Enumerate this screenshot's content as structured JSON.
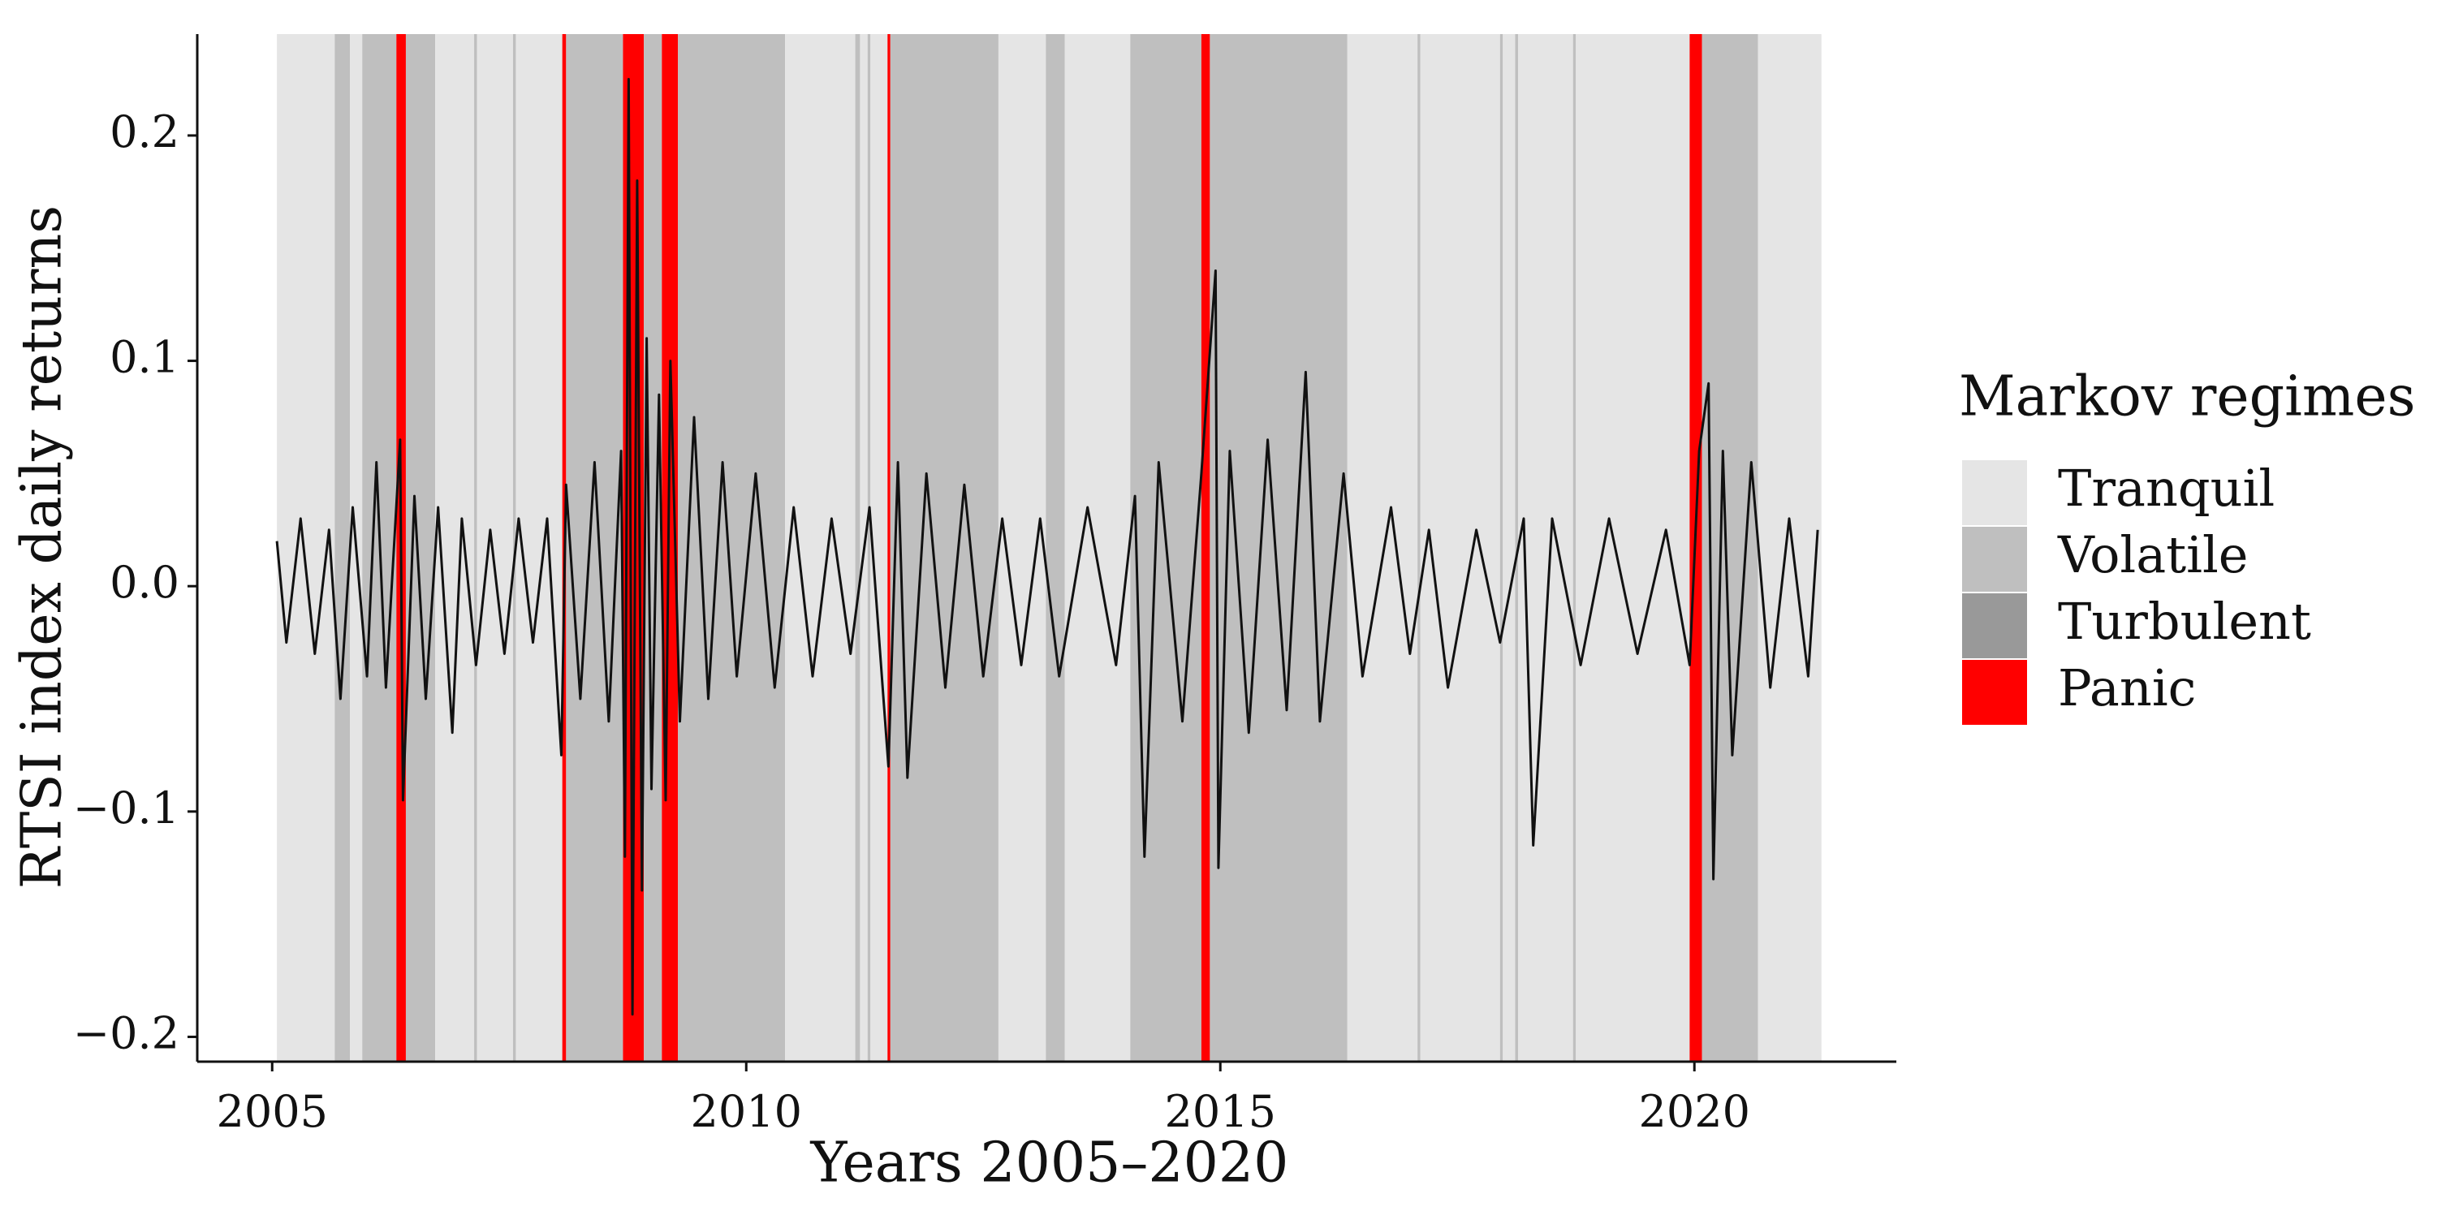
{
  "chart_data": {
    "type": "line",
    "x_label": "Years 2005–2020",
    "y_label": "RTSI index daily returns",
    "xlim": [
      2004.21,
      2022.13
    ],
    "ylim": [
      -0.211,
      0.245
    ],
    "xticks": [
      2005,
      2010,
      2015,
      2020
    ],
    "yticks": [
      {
        "value": -0.2,
        "label": "−0.2"
      },
      {
        "value": -0.1,
        "label": "−0.1"
      },
      {
        "value": 0,
        "label": "0.0"
      },
      0.1,
      0.2
    ],
    "line": {
      "color": "#111111",
      "x": [
        2005.05,
        2005.15,
        2005.3,
        2005.45,
        2005.6,
        2005.72,
        2005.85,
        2006.0,
        2006.1,
        2006.2,
        2006.35,
        2006.38,
        2006.5,
        2006.62,
        2006.75,
        2006.9,
        2007.0,
        2007.15,
        2007.3,
        2007.45,
        2007.6,
        2007.75,
        2007.9,
        2008.05,
        2008.1,
        2008.25,
        2008.4,
        2008.55,
        2008.68,
        2008.72,
        2008.76,
        2008.8,
        2008.85,
        2008.9,
        2008.95,
        2009.0,
        2009.08,
        2009.15,
        2009.2,
        2009.3,
        2009.45,
        2009.6,
        2009.75,
        2009.9,
        2010.1,
        2010.3,
        2010.5,
        2010.7,
        2010.9,
        2011.1,
        2011.3,
        2011.5,
        2011.6,
        2011.7,
        2011.9,
        2012.1,
        2012.3,
        2012.5,
        2012.7,
        2012.9,
        2013.1,
        2013.3,
        2013.6,
        2013.9,
        2014.1,
        2014.2,
        2014.35,
        2014.6,
        2014.8,
        2014.95,
        2014.98,
        2015.1,
        2015.3,
        2015.5,
        2015.7,
        2015.9,
        2016.05,
        2016.3,
        2016.5,
        2016.8,
        2017.0,
        2017.2,
        2017.4,
        2017.7,
        2017.95,
        2018.2,
        2018.3,
        2018.5,
        2018.8,
        2019.1,
        2019.4,
        2019.7,
        2019.95,
        2020.05,
        2020.15,
        2020.2,
        2020.3,
        2020.4,
        2020.6,
        2020.8,
        2021.0,
        2021.2,
        2021.3
      ],
      "values": [
        0.02,
        -0.025,
        0.03,
        -0.03,
        0.025,
        -0.05,
        0.035,
        -0.04,
        0.055,
        -0.045,
        0.065,
        -0.095,
        0.04,
        -0.05,
        0.035,
        -0.065,
        0.03,
        -0.035,
        0.025,
        -0.03,
        0.03,
        -0.025,
        0.03,
        -0.075,
        0.045,
        -0.05,
        0.055,
        -0.06,
        0.06,
        -0.12,
        0.225,
        -0.19,
        0.18,
        -0.135,
        0.11,
        -0.09,
        0.085,
        -0.095,
        0.1,
        -0.06,
        0.075,
        -0.05,
        0.055,
        -0.04,
        0.05,
        -0.045,
        0.035,
        -0.04,
        0.03,
        -0.03,
        0.035,
        -0.08,
        0.055,
        -0.085,
        0.05,
        -0.045,
        0.045,
        -0.04,
        0.03,
        -0.035,
        0.03,
        -0.04,
        0.035,
        -0.035,
        0.04,
        -0.12,
        0.055,
        -0.06,
        0.05,
        0.14,
        -0.125,
        0.06,
        -0.065,
        0.065,
        -0.055,
        0.095,
        -0.06,
        0.05,
        -0.04,
        0.035,
        -0.03,
        0.025,
        -0.045,
        0.025,
        -0.025,
        0.03,
        -0.115,
        0.03,
        -0.035,
        0.03,
        -0.03,
        0.025,
        -0.035,
        0.06,
        0.09,
        -0.13,
        0.06,
        -0.075,
        0.055,
        -0.045,
        0.03,
        -0.04,
        0.025
      ]
    },
    "legend": {
      "title": "Markov regimes",
      "position": "right",
      "levels": [
        {
          "name": "Tranquil",
          "color": "#e5e5e5"
        },
        {
          "name": "Volatile",
          "color": "#bfbfbf"
        },
        {
          "name": "Turbulent",
          "color": "#999999"
        },
        {
          "name": "Panic",
          "color": "#ff0000"
        }
      ]
    },
    "regimes": [
      {
        "start": 2005.05,
        "end": 2005.66,
        "level": 0
      },
      {
        "start": 2005.66,
        "end": 2005.82,
        "level": 1
      },
      {
        "start": 2005.82,
        "end": 2005.95,
        "level": 0
      },
      {
        "start": 2005.95,
        "end": 2006.31,
        "level": 1
      },
      {
        "start": 2006.31,
        "end": 2006.41,
        "level": 3
      },
      {
        "start": 2006.41,
        "end": 2006.72,
        "level": 1
      },
      {
        "start": 2006.72,
        "end": 2007.13,
        "level": 0
      },
      {
        "start": 2007.13,
        "end": 2007.16,
        "level": 1
      },
      {
        "start": 2007.16,
        "end": 2007.54,
        "level": 0
      },
      {
        "start": 2007.54,
        "end": 2007.57,
        "level": 1
      },
      {
        "start": 2007.57,
        "end": 2008.06,
        "level": 0
      },
      {
        "start": 2008.06,
        "end": 2008.1,
        "level": 3
      },
      {
        "start": 2008.1,
        "end": 2008.7,
        "level": 1
      },
      {
        "start": 2008.7,
        "end": 2008.92,
        "level": 3
      },
      {
        "start": 2008.92,
        "end": 2009.11,
        "level": 1
      },
      {
        "start": 2009.11,
        "end": 2009.28,
        "level": 3
      },
      {
        "start": 2009.28,
        "end": 2010.41,
        "level": 1
      },
      {
        "start": 2010.41,
        "end": 2011.15,
        "level": 0
      },
      {
        "start": 2011.15,
        "end": 2011.2,
        "level": 1
      },
      {
        "start": 2011.2,
        "end": 2011.28,
        "level": 0
      },
      {
        "start": 2011.28,
        "end": 2011.31,
        "level": 1
      },
      {
        "start": 2011.31,
        "end": 2011.49,
        "level": 0
      },
      {
        "start": 2011.49,
        "end": 2011.52,
        "level": 3
      },
      {
        "start": 2011.52,
        "end": 2012.66,
        "level": 1
      },
      {
        "start": 2012.66,
        "end": 2013.16,
        "level": 0
      },
      {
        "start": 2013.16,
        "end": 2013.36,
        "level": 1
      },
      {
        "start": 2013.36,
        "end": 2014.05,
        "level": 0
      },
      {
        "start": 2014.05,
        "end": 2014.8,
        "level": 1
      },
      {
        "start": 2014.8,
        "end": 2014.89,
        "level": 3
      },
      {
        "start": 2014.89,
        "end": 2016.34,
        "level": 1
      },
      {
        "start": 2016.34,
        "end": 2017.08,
        "level": 0
      },
      {
        "start": 2017.08,
        "end": 2017.11,
        "level": 1
      },
      {
        "start": 2017.11,
        "end": 2017.95,
        "level": 0
      },
      {
        "start": 2017.95,
        "end": 2017.98,
        "level": 1
      },
      {
        "start": 2017.98,
        "end": 2018.11,
        "level": 0
      },
      {
        "start": 2018.11,
        "end": 2018.14,
        "level": 1
      },
      {
        "start": 2018.14,
        "end": 2018.72,
        "level": 0
      },
      {
        "start": 2018.72,
        "end": 2018.75,
        "level": 1
      },
      {
        "start": 2018.75,
        "end": 2019.95,
        "level": 0
      },
      {
        "start": 2019.95,
        "end": 2020.08,
        "level": 3
      },
      {
        "start": 2020.08,
        "end": 2020.67,
        "level": 1
      },
      {
        "start": 2020.67,
        "end": 2021.34,
        "level": 0
      }
    ]
  }
}
